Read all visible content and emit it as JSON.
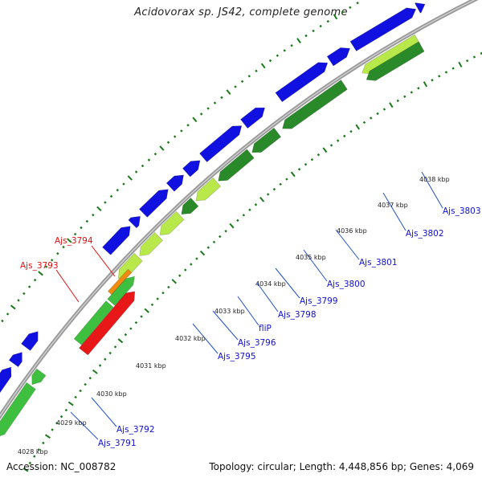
{
  "title": "Acidovorax sp. JS42, complete genome",
  "footer": {
    "accession": "Accession: NC_008782",
    "stats": "Topology: circular; Length: 4,448,856 bp; Genes: 4,069"
  },
  "colors": {
    "backbone": "#9a9a9a",
    "tick": "#1a7a1a",
    "cds_forward": "#1010e0",
    "cds_reverse_light": "#b8e84a",
    "cds_reverse_mid": "#3fbf3f",
    "cds_reverse_dark": "#2a8a2a",
    "rna": "#e81818",
    "rna_orange": "#f08a10",
    "label_red": "#e01010",
    "label_blue": "#1010d0",
    "leader_line": "#2050d0"
  },
  "scale_labels": [
    "4028 kbp",
    "4029 kbp",
    "4030 kbp",
    "4031 kbp",
    "4032 kbp",
    "4033 kbp",
    "4034 kbp",
    "4035 kbp",
    "4036 kbp",
    "4037 kbp",
    "4038 kbp"
  ],
  "genes": [
    {
      "name": "Ajs_3791",
      "color": "blue"
    },
    {
      "name": "Ajs_3792",
      "color": "blue"
    },
    {
      "name": "Ajs_3793",
      "color": "red"
    },
    {
      "name": "Ajs_3794",
      "color": "red"
    },
    {
      "name": "Ajs_3795",
      "color": "blue"
    },
    {
      "name": "Ajs_3796",
      "color": "blue"
    },
    {
      "name": "fliP",
      "color": "blue"
    },
    {
      "name": "Ajs_3798",
      "color": "blue"
    },
    {
      "name": "Ajs_3799",
      "color": "blue"
    },
    {
      "name": "Ajs_3800",
      "color": "blue"
    },
    {
      "name": "Ajs_3801",
      "color": "blue"
    },
    {
      "name": "Ajs_3802",
      "color": "blue"
    },
    {
      "name": "Ajs_3803",
      "color": "blue"
    }
  ]
}
